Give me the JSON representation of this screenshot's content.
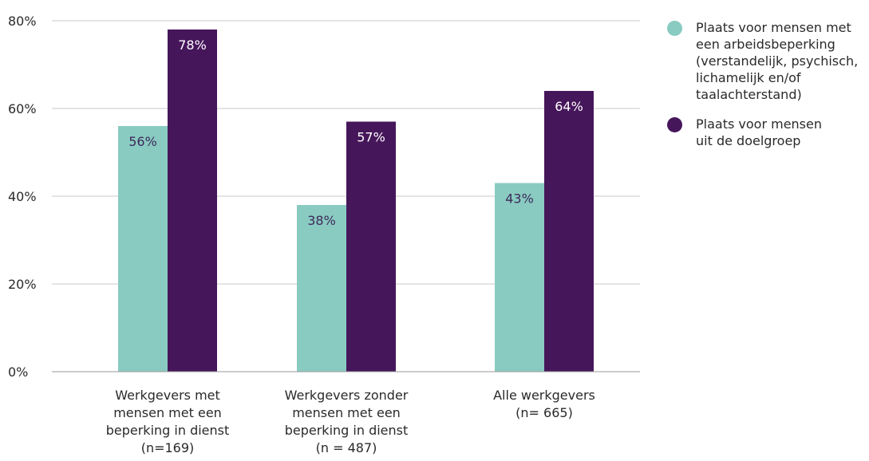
{
  "chart_data": {
    "type": "bar",
    "title": "",
    "xlabel": "",
    "ylabel": "",
    "ylim": [
      0,
      80
    ],
    "yticks": [
      0,
      20,
      40,
      60,
      80
    ],
    "ytick_labels": [
      "0%",
      "20%",
      "40%",
      "60%",
      "80%"
    ],
    "grid": true,
    "legend_position": "right",
    "categories": [
      [
        "Werkgevers met",
        "mensen met een",
        "beperking in dienst",
        "(n=169)"
      ],
      [
        "Werkgevers zonder",
        "mensen met een",
        "beperking in dienst",
        "(n = 487)"
      ],
      [
        "Alle werkgevers",
        "(n= 665)"
      ]
    ],
    "series": [
      {
        "name": "Plaats voor mensen met een arbeidsbeperking (verstandelijk, psychisch, lichamelijk en/of taalachterstand)",
        "legend_lines": [
          "Plaats voor mensen met",
          "een arbeidsbeperking",
          "(verstandelijk, psychisch,",
          "lichamelijk en/of",
          "taalachterstand)"
        ],
        "color": "#89cbc1",
        "label_color": "#3d2a5a",
        "values": [
          56,
          38,
          43
        ],
        "labels": [
          "56%",
          "38%",
          "43%"
        ]
      },
      {
        "name": "Plaats voor mensen uit de doelgroep",
        "legend_lines": [
          "Plaats voor mensen",
          "uit de doelgroep"
        ],
        "color": "#46165b",
        "label_color": "#ffffff",
        "values": [
          78,
          57,
          64
        ],
        "labels": [
          "78%",
          "57%",
          "64%"
        ]
      }
    ]
  }
}
